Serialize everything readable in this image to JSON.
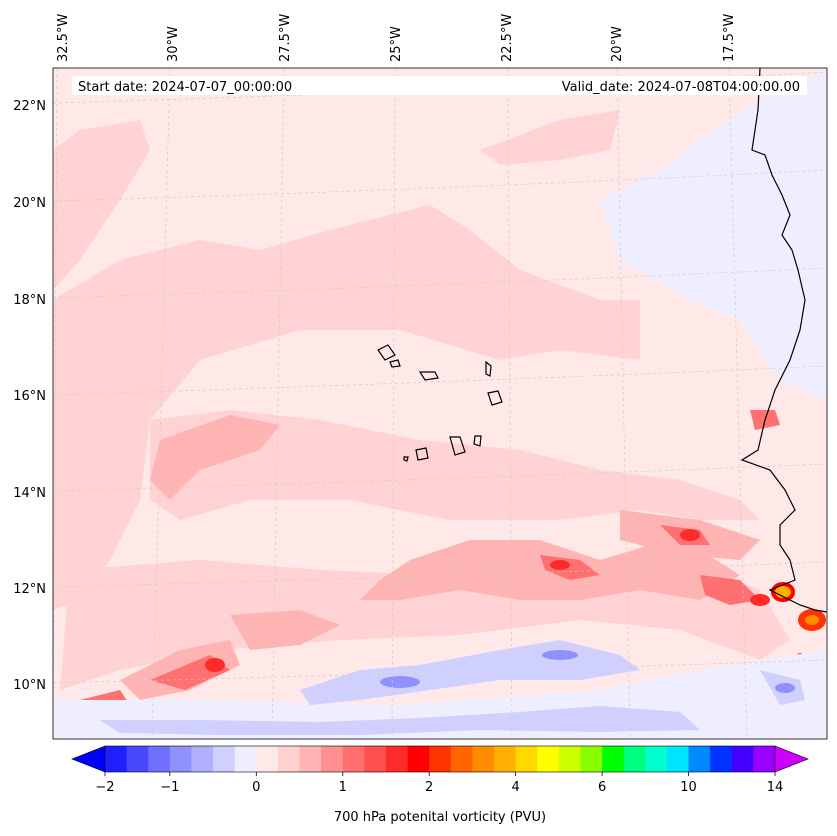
{
  "map": {
    "start_date": "Start date: 2024-07-07_00:00:00",
    "valid_date": "Valid_date: 2024-07-08T04:00:00.00",
    "lon_labels": [
      "32.5°W",
      "30°W",
      "27.5°W",
      "25°W",
      "22.5°W",
      "20°W",
      "17.5°W"
    ],
    "lat_labels": [
      "22°N",
      "20°N",
      "18°N",
      "16°N",
      "14°N",
      "12°N",
      "10°N"
    ],
    "extent": {
      "lon": [
        -32.5,
        -15.3
      ],
      "lat": [
        8.9,
        22.8
      ]
    },
    "gridlines": true,
    "coastline_color": "#000000"
  },
  "colorbar": {
    "title": "700 hPa potenital vorticity (PVU)",
    "tick_labels": [
      "−2",
      "−1",
      "0",
      "1",
      "2",
      "4",
      "6",
      "10",
      "14"
    ],
    "colors": [
      "#0000ff",
      "#2020ff",
      "#4848ff",
      "#7070ff",
      "#9090ff",
      "#b0b0ff",
      "#d0d0ff",
      "#eeeeff",
      "#ffe8e8",
      "#ffd0d0",
      "#ffb4b4",
      "#ff9090",
      "#ff7070",
      "#ff5050",
      "#ff2a2a",
      "#ff0000",
      "#ff3300",
      "#ff6600",
      "#ff8c00",
      "#ffb000",
      "#ffd800",
      "#ffff00",
      "#ccff00",
      "#88ff00",
      "#00ff00",
      "#00ff7f",
      "#00ffcc",
      "#00e5ff",
      "#0088ff",
      "#0033ff",
      "#4400ff",
      "#9900ff",
      "#cc00ff"
    ],
    "extend": "both"
  }
}
